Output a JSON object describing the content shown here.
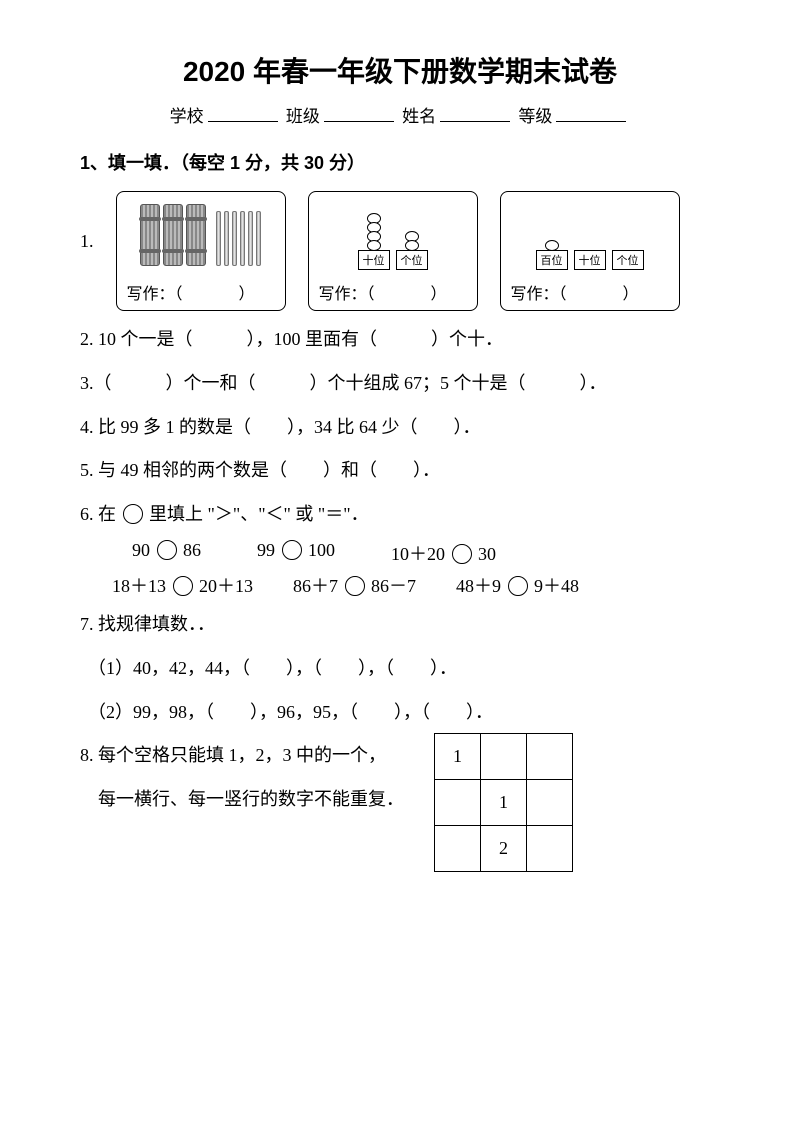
{
  "title": "2020 年春一年级下册数学期末试卷",
  "info": {
    "school": "学校",
    "class": "班级",
    "name": "姓名",
    "grade": "等级"
  },
  "section1": "1、填一填．（每空 1 分，共 30 分）",
  "q1": {
    "num": "1.",
    "boxA": {
      "write": "写作：",
      "paren": "（　　　）",
      "bundles": 3,
      "sticks": 6
    },
    "boxB": {
      "write": "写作：",
      "paren": "（　　　）",
      "rods": [
        {
          "label": "十位",
          "beads": 4
        },
        {
          "label": "个位",
          "beads": 2
        }
      ]
    },
    "boxC": {
      "write": "写作：",
      "paren": "（　　　）",
      "rods": [
        {
          "label": "百位",
          "beads": 1
        },
        {
          "label": "十位",
          "beads": 0
        },
        {
          "label": "个位",
          "beads": 0
        }
      ]
    }
  },
  "q2": "2. 10 个一是（　　　），100 里面有（　　　）个十．",
  "q3": "3.（　　　）个一和（　　　）个十组成 67；5 个十是（　　　）．",
  "q4": "4. 比 99 多 1 的数是（　　），34 比 64 少（　　）．",
  "q5": "5. 与 49 相邻的两个数是（　　）和（　　）．",
  "q6": {
    "head": "6. 在 ○ 里填上 \"＞\"、\"＜\" 或 \"＝\"．",
    "row1": [
      "90 ○ 86",
      "99 ○ 100",
      "10＋20 ○ 30"
    ],
    "row2": [
      "18＋13 ○ 20＋13",
      "86＋7 ○ 86－7",
      "48＋9 ○ 9＋48"
    ]
  },
  "q7": {
    "head": "7. 找规律填数．．",
    "a": "（1）40，42，44，（　　），（　　），（　　）．",
    "b": "（2）99，98，（　　），96，95，（　　），（　　）．"
  },
  "q8": {
    "line1": "8. 每个空格只能填 1，2，3 中的一个，",
    "line2": "每一横行、每一竖行的数字不能重复．",
    "grid": [
      [
        "1",
        "",
        ""
      ],
      [
        "",
        "1",
        ""
      ],
      [
        "",
        "2",
        ""
      ]
    ]
  }
}
